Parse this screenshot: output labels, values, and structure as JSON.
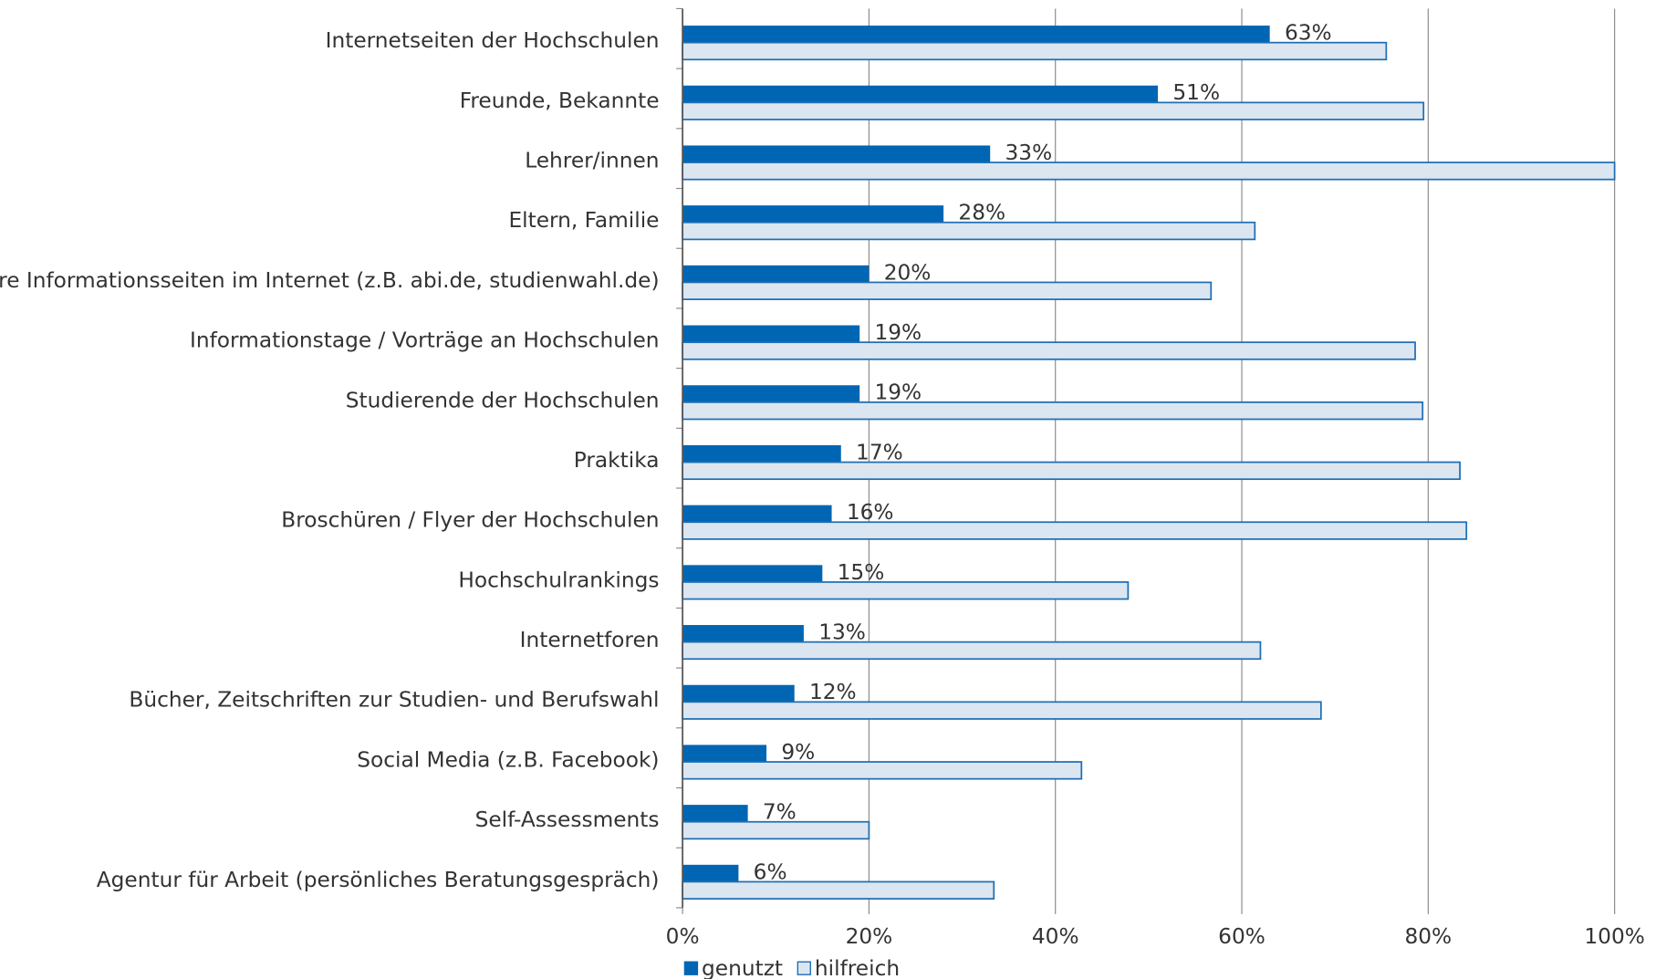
{
  "chart_data": {
    "type": "bar",
    "orientation": "horizontal",
    "categories": [
      "Internetseiten der Hochschulen",
      "Freunde, Bekannte",
      "Lehrer/innen",
      "Eltern, Familie",
      "Andere Informationsseiten im Internet (z.B. abi.de, studienwahl.de)",
      "Informationstage / Vorträge an Hochschulen",
      "Studierende der Hochschulen",
      "Praktika",
      "Broschüren / Flyer der Hochschulen",
      "Hochschulrankings",
      "Internetforen",
      "Bücher, Zeitschriften zur Studien- und Berufswahl",
      "Social Media (z.B. Facebook)",
      "Self-Assessments",
      "Agentur für Arbeit (persönliches Beratungsgespräch)"
    ],
    "series": [
      {
        "name": "genutzt",
        "color": "#0066b3",
        "values": [
          63,
          51,
          33,
          28,
          20,
          19,
          19,
          17,
          16,
          15,
          13,
          12,
          9,
          7,
          6
        ],
        "value_labels": [
          "63%",
          "51%",
          "33%",
          "28%",
          "20%",
          "19%",
          "19%",
          "17%",
          "16%",
          "15%",
          "13%",
          "12%",
          "9%",
          "7%",
          "6%"
        ]
      },
      {
        "name": "hilfreich",
        "color": "#dce6f0",
        "values": [
          75.5,
          79.5,
          100,
          61.4,
          56.7,
          78.6,
          79.4,
          83.4,
          84.1,
          47.8,
          62,
          68.5,
          42.8,
          20,
          33.4
        ]
      }
    ],
    "xlim": [
      0,
      100
    ],
    "xticks": [
      {
        "value": 0,
        "label": "0%"
      },
      {
        "value": 20,
        "label": "20%"
      },
      {
        "value": 40,
        "label": "40%"
      },
      {
        "value": 60,
        "label": "60%"
      },
      {
        "value": 80,
        "label": "80%"
      },
      {
        "value": 100,
        "label": "100%"
      }
    ],
    "grid": true,
    "legend": "bottom"
  }
}
